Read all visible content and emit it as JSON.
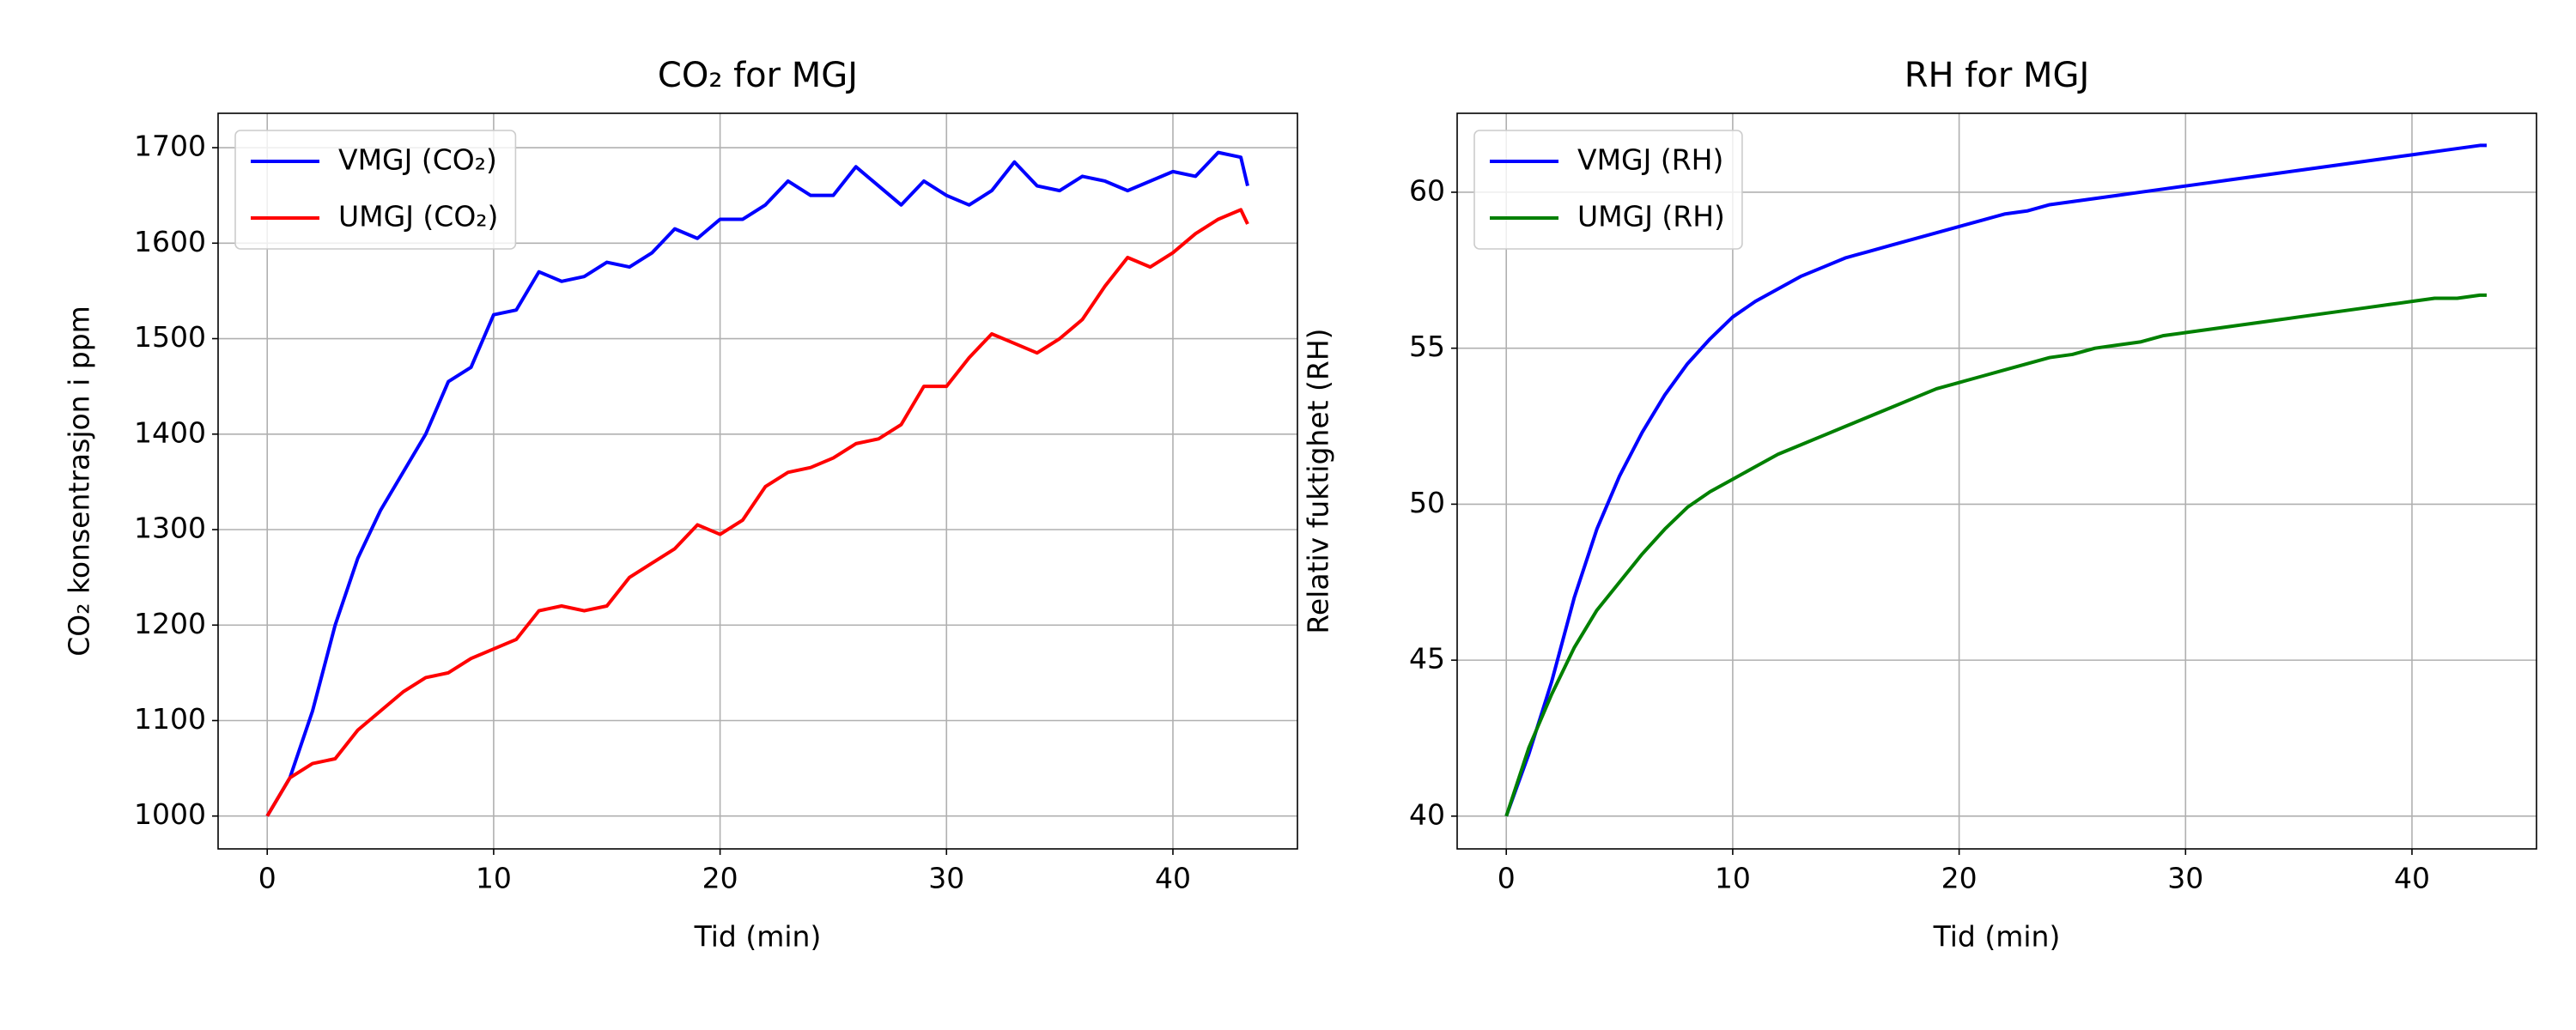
{
  "chart_data": [
    {
      "type": "line",
      "title": "CO₂ for MGJ",
      "xlabel": "Tid (min)",
      "ylabel": "CO₂ konsentrasjon i ppm",
      "x": [
        0,
        1,
        2,
        3,
        4,
        5,
        6,
        7,
        8,
        9,
        10,
        11,
        12,
        13,
        14,
        15,
        16,
        17,
        18,
        19,
        20,
        21,
        22,
        23,
        24,
        25,
        26,
        27,
        28,
        29,
        30,
        31,
        32,
        33,
        34,
        35,
        36,
        37,
        38,
        39,
        40,
        41,
        42,
        43,
        43.3
      ],
      "series": [
        {
          "name": "VMGJ (CO₂)",
          "color": "#0000ff",
          "values": [
            1000,
            1040,
            1110,
            1200,
            1270,
            1320,
            1360,
            1400,
            1455,
            1470,
            1525,
            1530,
            1570,
            1560,
            1565,
            1580,
            1575,
            1590,
            1615,
            1605,
            1625,
            1625,
            1640,
            1665,
            1650,
            1650,
            1680,
            1660,
            1640,
            1665,
            1650,
            1640,
            1655,
            1685,
            1660,
            1655,
            1670,
            1665,
            1655,
            1665,
            1675,
            1670,
            1695,
            1690,
            1660
          ]
        },
        {
          "name": "UMGJ (CO₂)",
          "color": "#ff0000",
          "values": [
            1000,
            1040,
            1055,
            1060,
            1090,
            1110,
            1130,
            1145,
            1150,
            1165,
            1175,
            1185,
            1215,
            1220,
            1215,
            1220,
            1250,
            1265,
            1280,
            1305,
            1295,
            1310,
            1345,
            1360,
            1365,
            1375,
            1390,
            1395,
            1410,
            1450,
            1450,
            1480,
            1505,
            1495,
            1485,
            1500,
            1520,
            1555,
            1585,
            1575,
            1590,
            1610,
            1625,
            1635,
            1620
          ]
        }
      ],
      "xlim": [
        -2.17,
        45.5
      ],
      "ylim": [
        965.6,
        1736
      ],
      "xticks": [
        0,
        10,
        20,
        30,
        40
      ],
      "yticks": [
        1000,
        1100,
        1200,
        1300,
        1400,
        1500,
        1600,
        1700
      ],
      "grid": true,
      "legend": "upper left"
    },
    {
      "type": "line",
      "title": "RH for MGJ",
      "xlabel": "Tid (min)",
      "ylabel": "Relativ fuktighet (RH)",
      "x": [
        0,
        1,
        2,
        3,
        4,
        5,
        6,
        7,
        8,
        9,
        10,
        11,
        12,
        13,
        14,
        15,
        16,
        17,
        18,
        19,
        20,
        21,
        22,
        23,
        24,
        25,
        26,
        27,
        28,
        29,
        30,
        31,
        32,
        33,
        34,
        35,
        36,
        37,
        38,
        39,
        40,
        41,
        42,
        43,
        43.3
      ],
      "series": [
        {
          "name": "VMGJ (RH)",
          "color": "#0000ff",
          "values": [
            40,
            42,
            44.3,
            47,
            49.2,
            50.9,
            52.3,
            53.5,
            54.5,
            55.3,
            56,
            56.5,
            56.9,
            57.3,
            57.6,
            57.9,
            58.1,
            58.3,
            58.5,
            58.7,
            58.9,
            59.1,
            59.3,
            59.4,
            59.6,
            59.7,
            59.8,
            59.9,
            60,
            60.1,
            60.2,
            60.3,
            60.4,
            60.5,
            60.6,
            60.7,
            60.8,
            60.9,
            61,
            61.1,
            61.2,
            61.3,
            61.4,
            61.5,
            61.5
          ]
        },
        {
          "name": "UMGJ (RH)",
          "color": "#008000",
          "values": [
            40,
            42.2,
            43.9,
            45.4,
            46.6,
            47.5,
            48.4,
            49.2,
            49.9,
            50.4,
            50.8,
            51.2,
            51.6,
            51.9,
            52.2,
            52.5,
            52.8,
            53.1,
            53.4,
            53.7,
            53.9,
            54.1,
            54.3,
            54.5,
            54.7,
            54.8,
            55,
            55.1,
            55.2,
            55.4,
            55.5,
            55.6,
            55.7,
            55.8,
            55.9,
            56,
            56.1,
            56.2,
            56.3,
            56.4,
            56.5,
            56.6,
            56.6,
            56.7,
            56.7
          ]
        }
      ],
      "xlim": [
        -2.17,
        45.5
      ],
      "ylim": [
        38.95,
        62.53
      ],
      "xticks": [
        0,
        10,
        20,
        30,
        40
      ],
      "yticks": [
        40,
        45,
        50,
        55,
        60
      ],
      "grid": true,
      "legend": "upper left"
    }
  ]
}
